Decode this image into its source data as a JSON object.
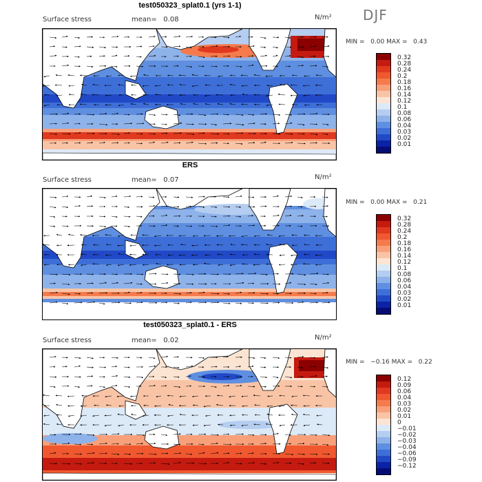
{
  "season": "DJF",
  "panels": [
    {
      "title": "test050323_splat0.1 (yrs 1-1)",
      "variable": "Surface stress",
      "mean_label": "mean=",
      "mean_value": "0.08",
      "units": "N/m²",
      "min_label": "MIN =",
      "min_value": "0.00",
      "max_label": "MAX =",
      "max_value": "0.43",
      "colorbar_ticks": [
        "0.32",
        "0.28",
        "0.24",
        "0.2",
        "0.18",
        "0.16",
        "0.14",
        "0.12",
        "0.1",
        "0.08",
        "0.06",
        "0.04",
        "0.03",
        "0.02",
        "0.01"
      ],
      "colorbar_colors": [
        "#8b0000",
        "#c41a10",
        "#e0391f",
        "#f0582f",
        "#f57a4c",
        "#f8a07a",
        "#f9c4a6",
        "#fbe4d2",
        "#dce9f7",
        "#b4cdf0",
        "#8eb2ea",
        "#5f8fe0",
        "#3e6fd8",
        "#2149c7",
        "#0b22a6",
        "#050d75"
      ]
    },
    {
      "title": "ERS",
      "variable": "Surface stress",
      "mean_label": "mean=",
      "mean_value": "0.07",
      "units": "N/m²",
      "min_label": "MIN =",
      "min_value": "0.00",
      "max_label": "MAX =",
      "max_value": "0.21",
      "colorbar_ticks": [
        "0.32",
        "0.28",
        "0.24",
        "0.2",
        "0.18",
        "0.16",
        "0.14",
        "0.12",
        "0.1",
        "0.08",
        "0.06",
        "0.04",
        "0.03",
        "0.02",
        "0.01"
      ],
      "colorbar_colors": [
        "#8b0000",
        "#c41a10",
        "#e0391f",
        "#f0582f",
        "#f57a4c",
        "#f8a07a",
        "#f9c4a6",
        "#fbe4d2",
        "#dce9f7",
        "#b4cdf0",
        "#8eb2ea",
        "#5f8fe0",
        "#3e6fd8",
        "#2149c7",
        "#0b22a6",
        "#050d75"
      ]
    },
    {
      "title": "test050323_splat0.1 - ERS",
      "variable": "Surface stress",
      "mean_label": "mean=",
      "mean_value": "0.02",
      "units": "N/m²",
      "min_label": "MIN =",
      "min_value": "−0.16",
      "max_label": "MAX =",
      "max_value": "0.22",
      "colorbar_ticks": [
        "0.12",
        "0.09",
        "0.06",
        "0.04",
        "0.03",
        "0.02",
        "0.01",
        "0",
        "−0.01",
        "−0.02",
        "−0.03",
        "−0.04",
        "−0.06",
        "−0.09",
        "−0.12"
      ],
      "colorbar_colors": [
        "#8b0000",
        "#c41a10",
        "#e0391f",
        "#f0582f",
        "#f57a4c",
        "#f8a07a",
        "#f9c4a6",
        "#fbe4d2",
        "#dce9f7",
        "#b4cdf0",
        "#8eb2ea",
        "#5f8fe0",
        "#3e6fd8",
        "#2149c7",
        "#0b22a6",
        "#050d75"
      ]
    }
  ]
}
